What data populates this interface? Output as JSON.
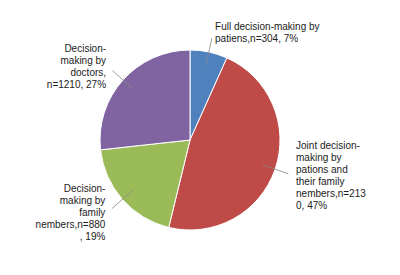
{
  "chart_data": {
    "type": "pie",
    "values": [
      304,
      2130,
      880,
      1210
    ],
    "colors": [
      "#4f81bd",
      "#be4b48",
      "#9bbb59",
      "#8064a2"
    ],
    "annotations": [
      "Full decision-making by\npatiens,n=304, 7%",
      "Joint decision-\nmaking by\npations and\ntheir family\nnembers,n=213\n0, 47%",
      "Decision-\nmaking by\nfamily\nnembers,n=880\n, 19%",
      "Decision-\nmaking by\ndoctors,\nn=1210, 27%"
    ]
  }
}
